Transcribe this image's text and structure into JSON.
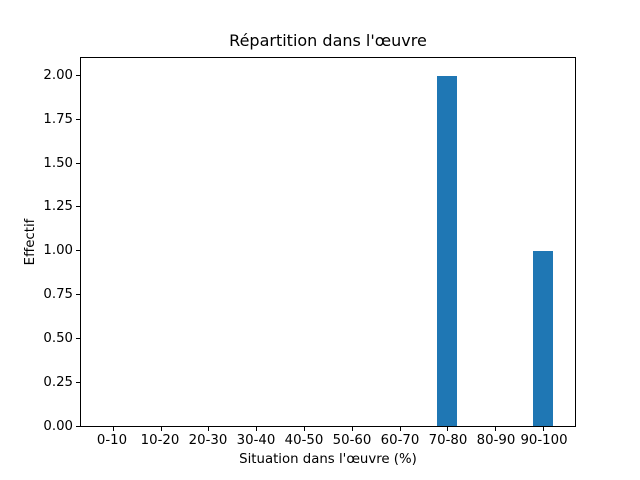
{
  "figure": {
    "background": "#ffffff",
    "text_color": "#000000",
    "spine_color": "#000000"
  },
  "chart_data": {
    "type": "bar",
    "title": "Répartition dans l'œuvre",
    "xlabel": "Situation dans l'œuvre (%)",
    "ylabel": "Effectif",
    "categories": [
      "0-10",
      "10-20",
      "20-30",
      "30-40",
      "40-50",
      "50-60",
      "60-70",
      "70-80",
      "80-90",
      "90-100"
    ],
    "values": [
      0,
      0,
      0,
      0,
      0,
      0,
      0,
      2,
      0,
      1
    ],
    "ytick_values": [
      0,
      0.25,
      0.5,
      0.75,
      1,
      1.25,
      1.5,
      1.75,
      2
    ],
    "ytick_labels": [
      "0.00",
      "0.25",
      "0.50",
      "0.75",
      "1.00",
      "1.25",
      "1.50",
      "1.75",
      "2.00"
    ],
    "ylim": [
      0,
      2.1
    ],
    "bar_color": "#1f77b4",
    "grid": false,
    "legend": null
  }
}
